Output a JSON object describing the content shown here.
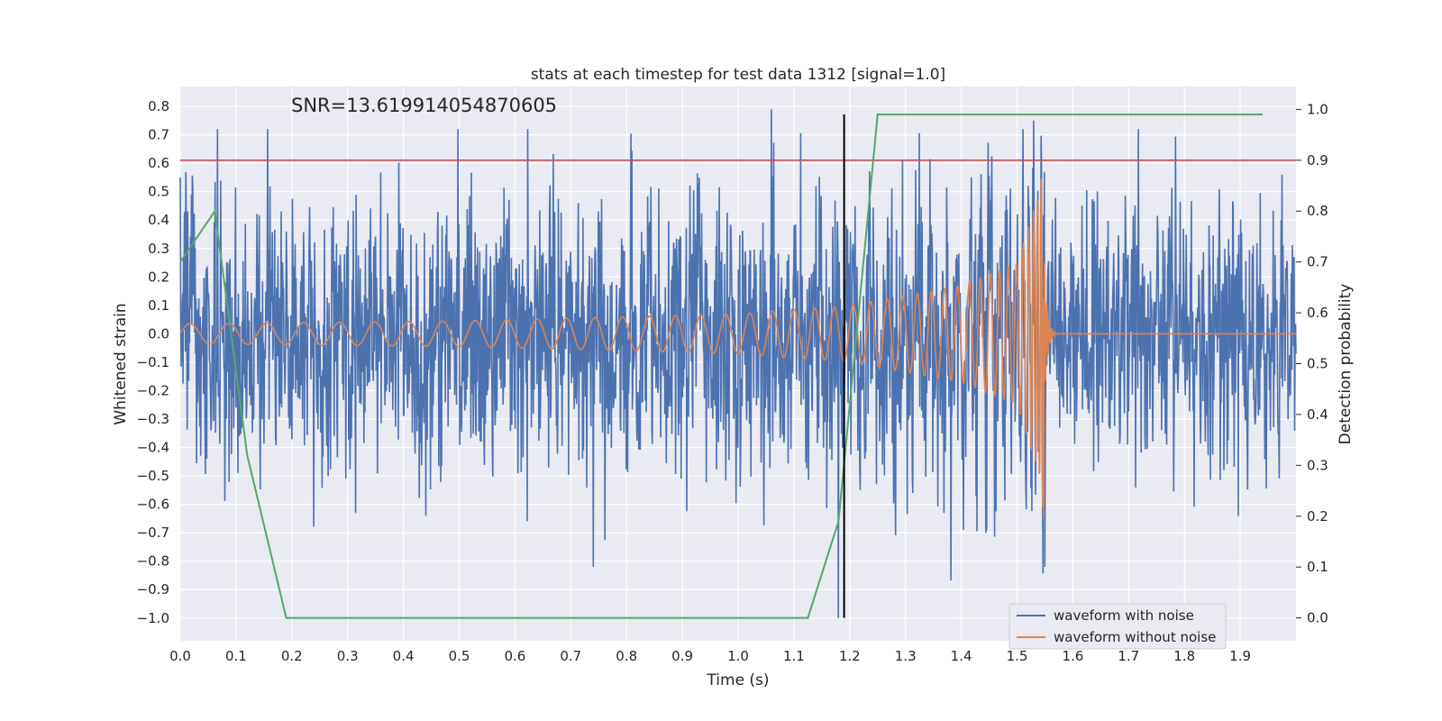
{
  "chart_data": {
    "type": "line",
    "title": "stats at each timestep for test data 1312 [signal=1.0]",
    "xlabel": "Time (s)",
    "ylabel": "Whitened strain",
    "y2label": "Detection probability",
    "annotation": "SNR=13.619914054870605",
    "xlim": [
      0.0,
      2.0
    ],
    "ylim": [
      -1.08,
      0.87
    ],
    "y2lim": [
      -0.045,
      1.045
    ],
    "x_ticks": [
      "0.0",
      "0.1",
      "0.2",
      "0.3",
      "0.4",
      "0.5",
      "0.6",
      "0.7",
      "0.8",
      "0.9",
      "1.0",
      "1.1",
      "1.2",
      "1.3",
      "1.4",
      "1.5",
      "1.6",
      "1.7",
      "1.8",
      "1.9"
    ],
    "y_ticks": [
      "0.8",
      "0.7",
      "0.6",
      "0.5",
      "0.4",
      "0.3",
      "0.2",
      "0.1",
      "0.0",
      "−0.1",
      "−0.2",
      "−0.3",
      "−0.4",
      "−0.5",
      "−0.6",
      "−0.7",
      "−0.8",
      "−0.9",
      "−1.0"
    ],
    "y2_ticks": [
      "1.0",
      "0.9",
      "0.8",
      "0.7",
      "0.6",
      "0.5",
      "0.4",
      "0.3",
      "0.2",
      "0.1",
      "0.0"
    ],
    "grid": true,
    "legend_position": "lower-right",
    "threshold": {
      "y2": 0.9,
      "color": "#c44e52"
    },
    "event_marker": {
      "x": 1.19,
      "color": "#000000"
    },
    "series": [
      {
        "name": "waveform with noise",
        "color": "#4c72b0",
        "axis": "left",
        "x_start": 0.0,
        "x_end": 2.0,
        "noise_amplitude_std": 0.24,
        "peaks": [
          {
            "x": 0.0,
            "y": 0.55
          },
          {
            "x": 1.06,
            "y": 0.79
          },
          {
            "x": 1.18,
            "y": -1.0
          },
          {
            "x": 1.53,
            "y": 0.75
          },
          {
            "x": 1.55,
            "y": -0.82
          },
          {
            "x": 0.74,
            "y": -0.82
          },
          {
            "x": 0.44,
            "y": -0.64
          }
        ]
      },
      {
        "name": "waveform without noise",
        "color": "#dd8452",
        "axis": "left",
        "description_points": [
          {
            "x": 0.0,
            "amplitude": 0.035,
            "frequency_hz": 14
          },
          {
            "x": 0.5,
            "amplitude": 0.045,
            "frequency_hz": 17
          },
          {
            "x": 1.0,
            "amplitude": 0.07,
            "frequency_hz": 23
          },
          {
            "x": 1.2,
            "amplitude": 0.1,
            "frequency_hz": 30
          },
          {
            "x": 1.4,
            "amplitude": 0.17,
            "frequency_hz": 45
          },
          {
            "x": 1.5,
            "amplitude": 0.25,
            "frequency_hz": 70
          },
          {
            "x": 1.54,
            "amplitude": 0.5,
            "frequency_hz": 150
          },
          {
            "x": 1.548,
            "amplitude": -0.65,
            "frequency_hz": 200
          },
          {
            "x": 1.57,
            "amplitude": 0.0,
            "frequency_hz": 0
          }
        ]
      },
      {
        "name": "detection probability",
        "color": "#55a868",
        "axis": "right",
        "x": [
          0.0,
          0.062,
          0.12,
          0.19,
          0.25,
          1.125,
          1.18,
          1.25,
          1.94
        ],
        "y": [
          0.7,
          0.8,
          0.32,
          0.0,
          0.0,
          0.0,
          0.19,
          0.99,
          0.99
        ]
      }
    ],
    "legend": [
      "waveform with noise",
      "waveform without noise"
    ],
    "colors": {
      "plot_background": "#eaeaf2",
      "grid": "#ffffff",
      "text": "#262626"
    }
  }
}
